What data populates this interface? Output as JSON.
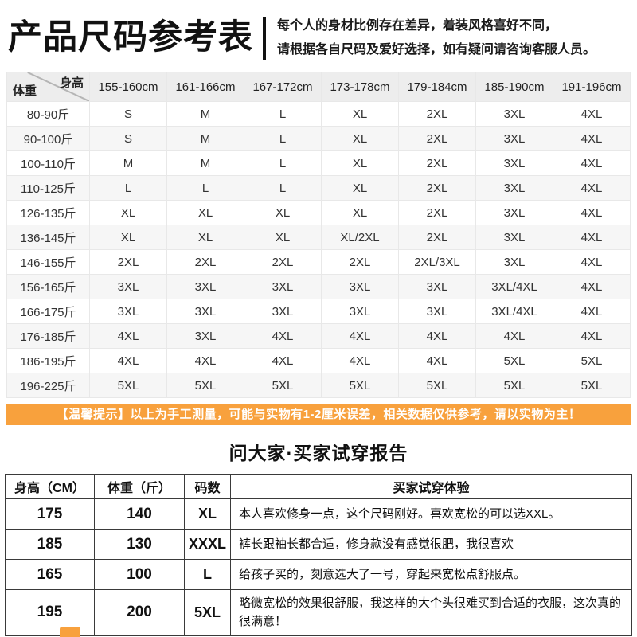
{
  "header": {
    "title": "产品尺码参考表",
    "note_line1": "每个人的身材比例存在差异，着装风格喜好不同，",
    "note_line2": "请根据各自尺码及爱好选择，如有疑问请咨询客服人员。"
  },
  "size_table": {
    "corner": {
      "top": "身高",
      "bottom": "体重"
    },
    "height_columns": [
      "155-160cm",
      "161-166cm",
      "167-172cm",
      "173-178cm",
      "179-184cm",
      "185-190cm",
      "191-196cm"
    ],
    "rows": [
      {
        "weight": "80-90斤",
        "sizes": [
          "S",
          "M",
          "L",
          "XL",
          "2XL",
          "3XL",
          "4XL"
        ]
      },
      {
        "weight": "90-100斤",
        "sizes": [
          "S",
          "M",
          "L",
          "XL",
          "2XL",
          "3XL",
          "4XL"
        ]
      },
      {
        "weight": "100-110斤",
        "sizes": [
          "M",
          "M",
          "L",
          "XL",
          "2XL",
          "3XL",
          "4XL"
        ]
      },
      {
        "weight": "110-125斤",
        "sizes": [
          "L",
          "L",
          "L",
          "XL",
          "2XL",
          "3XL",
          "4XL"
        ]
      },
      {
        "weight": "126-135斤",
        "sizes": [
          "XL",
          "XL",
          "XL",
          "XL",
          "2XL",
          "3XL",
          "4XL"
        ]
      },
      {
        "weight": "136-145斤",
        "sizes": [
          "XL",
          "XL",
          "XL",
          "XL/2XL",
          "2XL",
          "3XL",
          "4XL"
        ]
      },
      {
        "weight": "146-155斤",
        "sizes": [
          "2XL",
          "2XL",
          "2XL",
          "2XL",
          "2XL/3XL",
          "3XL",
          "4XL"
        ]
      },
      {
        "weight": "156-165斤",
        "sizes": [
          "3XL",
          "3XL",
          "3XL",
          "3XL",
          "3XL",
          "3XL/4XL",
          "4XL"
        ]
      },
      {
        "weight": "166-175斤",
        "sizes": [
          "3XL",
          "3XL",
          "3XL",
          "3XL",
          "3XL",
          "3XL/4XL",
          "4XL"
        ]
      },
      {
        "weight": "176-185斤",
        "sizes": [
          "4XL",
          "3XL",
          "4XL",
          "4XL",
          "4XL",
          "4XL",
          "4XL"
        ]
      },
      {
        "weight": "186-195斤",
        "sizes": [
          "4XL",
          "4XL",
          "4XL",
          "4XL",
          "4XL",
          "5XL",
          "5XL"
        ]
      },
      {
        "weight": "196-225斤",
        "sizes": [
          "5XL",
          "5XL",
          "5XL",
          "5XL",
          "5XL",
          "5XL",
          "5XL"
        ]
      }
    ]
  },
  "notice": {
    "text": "【温馨提示】以上为手工测量，可能与实物有1-2厘米误差，相关数据仅供参考，请以实物为主！"
  },
  "report": {
    "title": "问大家·买家试穿报告",
    "columns": [
      "身高（CM）",
      "体重（斤）",
      "码数",
      "买家试穿体验"
    ],
    "rows": [
      {
        "height": "175",
        "weight": "140",
        "size": "XL",
        "comment": "本人喜欢修身一点，这个尺码刚好。喜欢宽松的可以选XXL。"
      },
      {
        "height": "185",
        "weight": "130",
        "size": "XXXL",
        "comment": "裤长跟袖长都合适，修身款没有感觉很肥，我很喜欢"
      },
      {
        "height": "165",
        "weight": "100",
        "size": "L",
        "comment": "给孩子买的，刻意选大了一号，穿起来宽松点舒服点。"
      },
      {
        "height": "195",
        "weight": "200",
        "size": "5XL",
        "comment": "略微宽松的效果很舒服，我这样的大个头很难买到合适的衣服，这次真的很满意！"
      }
    ]
  },
  "colors": {
    "accent_orange": "#f8a13d",
    "table_header_gray": "#ededed",
    "row_alt_gray": "#f6f6f6",
    "report_border": "#3a3a3a"
  }
}
